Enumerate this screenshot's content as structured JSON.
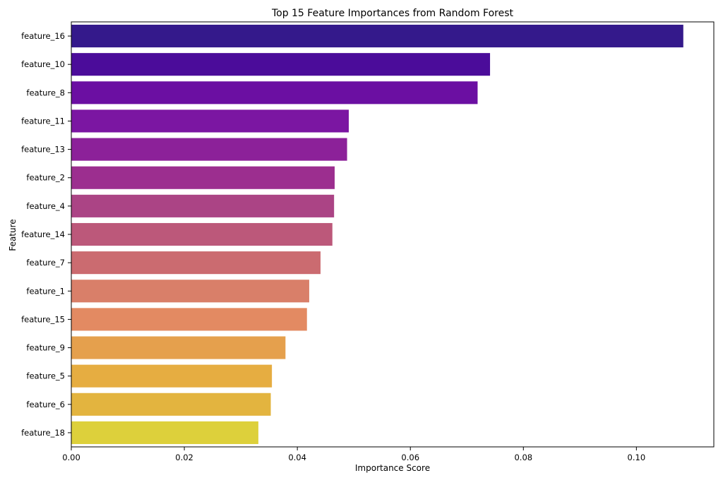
{
  "chart_data": {
    "type": "bar",
    "orientation": "horizontal",
    "title": "Top 15 Feature Importances from Random Forest",
    "xlabel": "Importance Score",
    "ylabel": "Feature",
    "xlim": [
      0,
      0.1137
    ],
    "xticks": [
      0.0,
      0.02,
      0.04,
      0.06,
      0.08,
      0.1
    ],
    "xtick_labels": [
      "0.00",
      "0.02",
      "0.04",
      "0.06",
      "0.08",
      "0.10"
    ],
    "grid": false,
    "legend": "none",
    "palette": "plasma",
    "categories": [
      "feature_16",
      "feature_10",
      "feature_8",
      "feature_11",
      "feature_13",
      "feature_2",
      "feature_4",
      "feature_14",
      "feature_7",
      "feature_1",
      "feature_15",
      "feature_9",
      "feature_5",
      "feature_6",
      "feature_18"
    ],
    "values": [
      0.1083,
      0.0741,
      0.0719,
      0.0491,
      0.0488,
      0.0466,
      0.0465,
      0.0462,
      0.0441,
      0.0421,
      0.0417,
      0.0379,
      0.0355,
      0.0353,
      0.0331
    ],
    "colors": [
      "#34198b",
      "#4b0c9a",
      "#6b0fa2",
      "#7b16a2",
      "#8c2199",
      "#9c2e8f",
      "#ab4485",
      "#bc587a",
      "#cb6b70",
      "#d97f69",
      "#e38a62",
      "#e5a04d",
      "#e6ad41",
      "#e3b43f",
      "#ddd03b"
    ]
  }
}
